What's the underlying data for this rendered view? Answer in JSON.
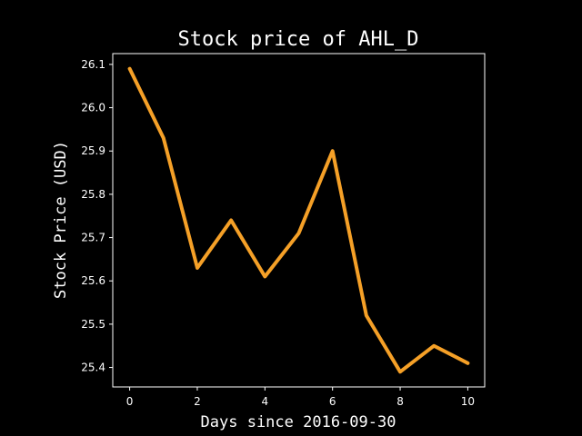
{
  "chart_data": {
    "type": "line",
    "title": "Stock price of AHL_D",
    "xlabel": "Days since 2016-09-30",
    "ylabel": "Stock Price (USD)",
    "x": [
      0,
      1,
      2,
      3,
      4,
      5,
      6,
      7,
      8,
      9,
      10
    ],
    "series": [
      {
        "values": [
          26.09,
          25.93,
          25.63,
          25.74,
          25.61,
          25.71,
          25.9,
          25.52,
          25.39,
          25.45,
          25.41
        ],
        "color": "#f5a027"
      }
    ],
    "xlim": [
      -0.5,
      10.5
    ],
    "ylim": [
      25.355,
      26.125
    ],
    "xticks": [
      "0",
      "2",
      "4",
      "6",
      "8",
      "10"
    ],
    "yticks": [
      "25.4",
      "25.5",
      "25.6",
      "25.7",
      "25.8",
      "25.9",
      "26.0",
      "26.1"
    ],
    "grid": false,
    "background": "#000000",
    "foreground": "#ffffff"
  }
}
